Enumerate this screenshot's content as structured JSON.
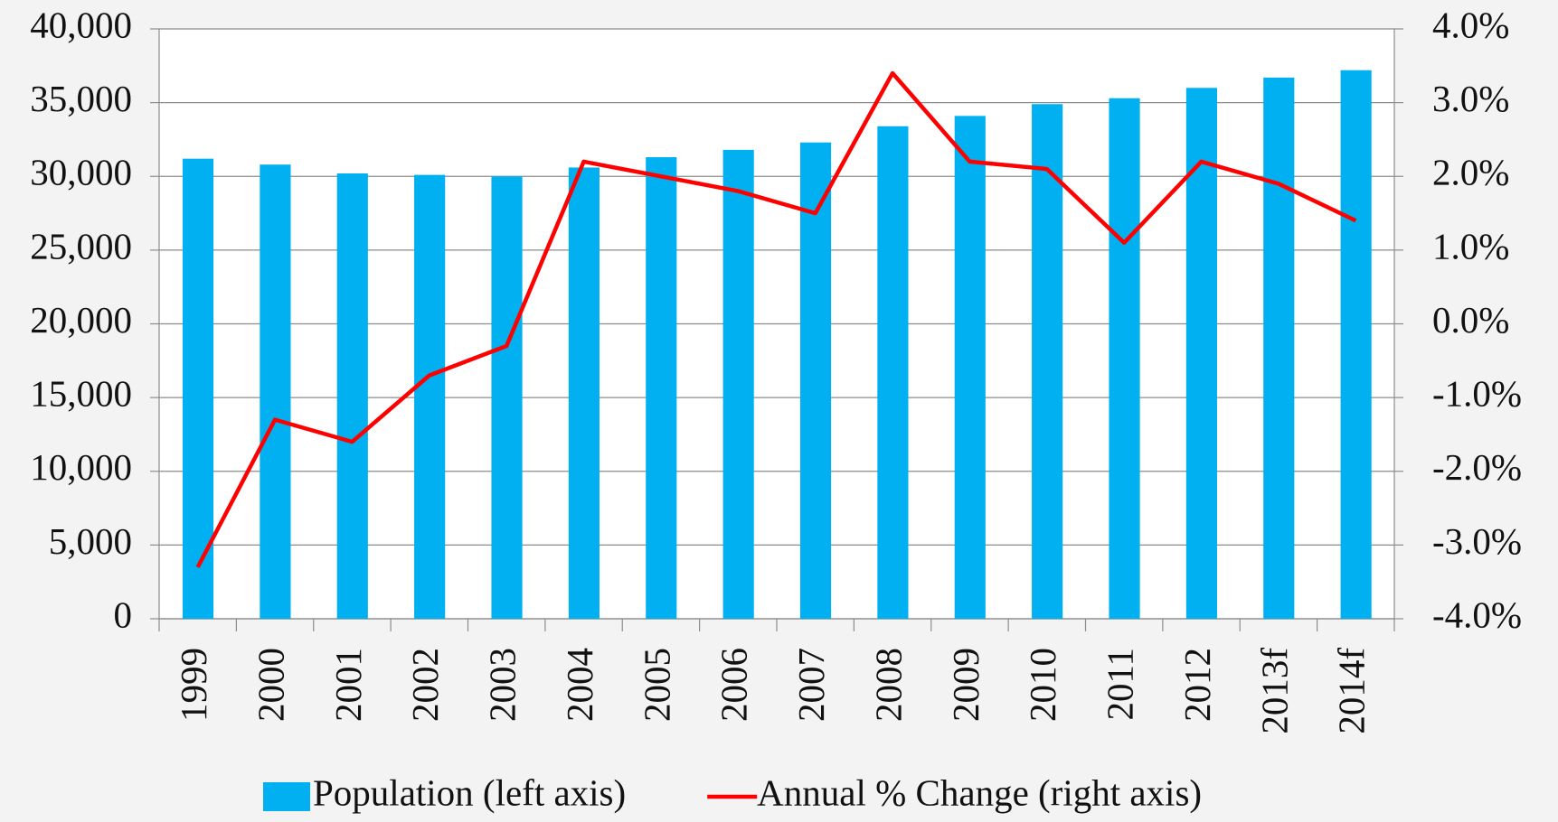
{
  "chart_data": {
    "type": "bar-line",
    "categories": [
      "1999",
      "2000",
      "2001",
      "2002",
      "2003",
      "2004",
      "2005",
      "2006",
      "2007",
      "2008",
      "2009",
      "2010",
      "2011",
      "2012",
      "2013f",
      "2014f"
    ],
    "series": [
      {
        "name": "Population (left axis)",
        "type": "bar",
        "color": "#00b0f0",
        "values": [
          31200,
          30800,
          30200,
          30100,
          30000,
          30600,
          31300,
          31800,
          32300,
          33400,
          34100,
          34900,
          35300,
          36000,
          36700,
          37200
        ]
      },
      {
        "name": "Annual % Change (right axis)",
        "type": "line",
        "axis": "y2",
        "color": "#ff0000",
        "values": [
          -3.3,
          -1.3,
          -1.6,
          -0.7,
          -0.3,
          2.2,
          2.0,
          1.8,
          1.5,
          3.4,
          2.2,
          2.1,
          1.1,
          2.2,
          1.9,
          1.4
        ]
      }
    ],
    "ylim": [
      0,
      40000
    ],
    "yticks": [
      0,
      {
        "value": 5000,
        "label": "5,000"
      },
      {
        "value": 10000,
        "label": "10,000"
      },
      {
        "value": 15000,
        "label": "15,000"
      },
      {
        "value": 20000,
        "label": "20,000"
      },
      {
        "value": 25000,
        "label": "25,000"
      },
      {
        "value": 30000,
        "label": "30,000"
      },
      {
        "value": 35000,
        "label": "35,000"
      },
      {
        "value": 40000,
        "label": "40,000"
      }
    ],
    "y2lim": [
      -4,
      4
    ],
    "y2ticks": [
      {
        "value": -4,
        "label": "-4.0%"
      },
      {
        "value": -3,
        "label": "-3.0%"
      },
      {
        "value": -2,
        "label": "-2.0%"
      },
      {
        "value": -1,
        "label": "-1.0%"
      },
      {
        "value": 0,
        "label": "0.0%"
      },
      {
        "value": 1,
        "label": "1.0%"
      },
      {
        "value": 2,
        "label": "2.0%"
      },
      {
        "value": 3,
        "label": "3.0%"
      },
      {
        "value": 4,
        "label": "4.0%"
      }
    ],
    "grid": true,
    "legend": "bottom"
  }
}
